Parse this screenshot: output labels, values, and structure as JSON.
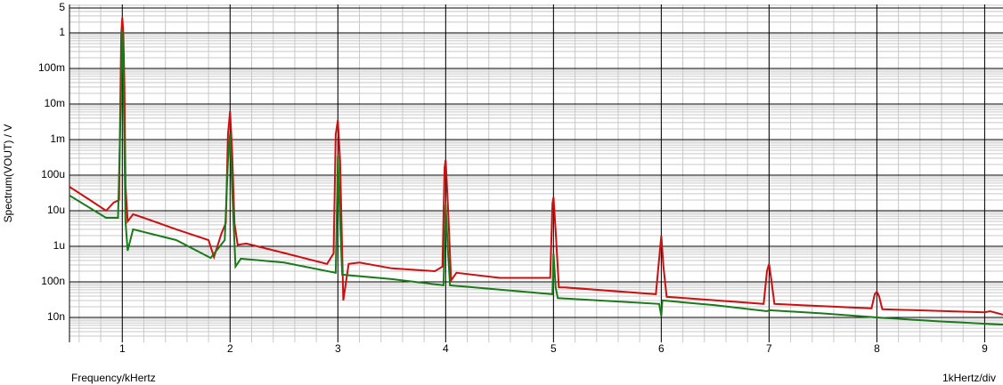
{
  "chart_data": {
    "type": "line",
    "ylabel": "Spectrum(VOUT) / V",
    "xlabel": "Frequency/kHertz",
    "scale_note": "1kHertz/div",
    "xlim": [
      0.51,
      9.17
    ],
    "ylim": [
      2e-09,
      6.3
    ],
    "ylog": true,
    "grid": true,
    "minor_grid": true,
    "xticks": [
      1,
      2,
      3,
      4,
      5,
      6,
      7,
      8,
      9
    ],
    "yticks": [
      5,
      1,
      {
        "value": 0.1,
        "label": "100m"
      },
      {
        "value": 0.01,
        "label": "10m"
      },
      {
        "value": 0.001,
        "label": "1m"
      },
      {
        "value": 0.0001,
        "label": "100u"
      },
      {
        "value": 1e-05,
        "label": "10u"
      },
      {
        "value": 1e-06,
        "label": "1u"
      },
      {
        "value": 1e-07,
        "label": "100n"
      },
      {
        "value": 1e-08,
        "label": "10n"
      }
    ],
    "series": [
      {
        "color": "#cc1010",
        "x": [
          0.51,
          0.7,
          0.85,
          0.92,
          0.97,
          0.98,
          0.99,
          1.0,
          1.01,
          1.02,
          1.03,
          1.05,
          1.1,
          1.2,
          1.5,
          1.8,
          1.85,
          1.92,
          1.96,
          1.98,
          2.0,
          2.02,
          2.04,
          2.07,
          2.15,
          2.5,
          2.9,
          2.96,
          2.98,
          3.0,
          3.02,
          3.05,
          3.1,
          3.2,
          3.5,
          3.9,
          3.97,
          3.99,
          4.0,
          4.02,
          4.05,
          4.1,
          4.5,
          4.97,
          4.99,
          5.0,
          5.02,
          5.05,
          5.1,
          5.95,
          5.98,
          6.0,
          6.02,
          6.05,
          6.95,
          6.98,
          7.0,
          7.02,
          7.05,
          7.95,
          7.98,
          8.0,
          8.02,
          8.05,
          9.0,
          9.05,
          9.17
        ],
        "values": [
          4.7e-05,
          2e-05,
          1e-05,
          1.7e-05,
          2e-05,
          0.005,
          0.9,
          2.7,
          0.9,
          0.032,
          5e-05,
          5e-06,
          8e-06,
          6.3e-06,
          3e-06,
          1.5e-06,
          5e-07,
          2.3e-06,
          4.5e-06,
          0.0014,
          0.0063,
          0.0004,
          4.5e-06,
          1.1e-06,
          1.2e-06,
          6.5e-07,
          3.2e-07,
          6.3e-07,
          0.0014,
          0.0035,
          0.00025,
          3e-08,
          3.2e-07,
          3.5e-07,
          2.4e-07,
          2e-07,
          2.7e-07,
          0.00016,
          0.00027,
          1.5e-05,
          1.1e-07,
          1.8e-07,
          1.3e-07,
          1.3e-07,
          1.6e-05,
          2.4e-05,
          2.7e-06,
          7e-08,
          7e-08,
          4.5e-08,
          4.5e-07,
          2e-06,
          2.7e-07,
          3.8e-08,
          2.4e-08,
          2e-07,
          3.2e-07,
          1.2e-07,
          2.4e-08,
          1.8e-08,
          4.5e-08,
          5.3e-08,
          4e-08,
          1.7e-08,
          1.4e-08,
          1.5e-08,
          1.2e-08
        ]
      },
      {
        "color": "#1a7a1a",
        "x": [
          0.51,
          0.85,
          0.96,
          0.98,
          1.0,
          1.01,
          1.03,
          1.05,
          1.1,
          1.5,
          1.82,
          1.95,
          1.98,
          2.0,
          2.02,
          2.05,
          2.1,
          2.5,
          2.98,
          3.0,
          3.02,
          3.04,
          3.5,
          3.98,
          4.0,
          4.02,
          4.04,
          4.99,
          5.0,
          5.02,
          5.04,
          5.98,
          6.0,
          6.01,
          6.5,
          6.98,
          7.0,
          7.5,
          8.0,
          8.5,
          9.17
        ],
        "values": [
          2.7e-05,
          6.3e-06,
          6.3e-06,
          0.0018,
          1.26,
          0.08,
          5e-06,
          7.5e-07,
          3e-06,
          1.5e-06,
          4.7e-07,
          1.5e-06,
          0.00025,
          0.0015,
          3.5e-05,
          2.7e-07,
          4.5e-07,
          3.5e-07,
          1.8e-07,
          0.00035,
          5e-06,
          1.6e-07,
          1.2e-07,
          8e-08,
          1.5e-05,
          8e-07,
          8e-08,
          4.5e-08,
          6.3e-07,
          7e-08,
          3.5e-08,
          2.4e-08,
          1.1e-08,
          3e-08,
          2.2e-08,
          1.5e-08,
          1.6e-08,
          1.3e-08,
          1e-08,
          8e-09,
          6.3e-09
        ]
      }
    ]
  }
}
